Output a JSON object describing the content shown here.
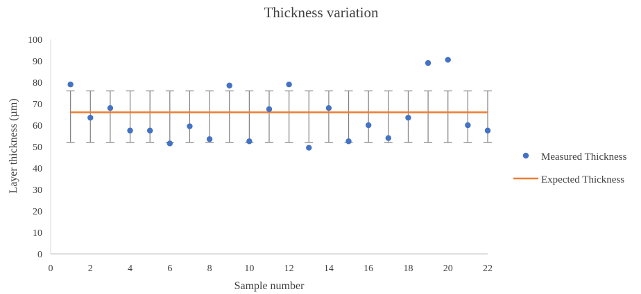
{
  "chart_data": {
    "type": "scatter",
    "title": "Thickness variation",
    "xlabel": "Sample number",
    "ylabel": "Layer thickness (µm)",
    "xlim": [
      0,
      22
    ],
    "ylim": [
      0,
      100
    ],
    "x_ticks": [
      0,
      2,
      4,
      6,
      8,
      10,
      12,
      14,
      16,
      18,
      20,
      22
    ],
    "y_ticks": [
      0,
      10,
      20,
      30,
      40,
      50,
      60,
      70,
      80,
      90,
      100
    ],
    "grid": false,
    "legend_position": "right",
    "series": [
      {
        "name": "Measured Thickness",
        "kind": "scatter",
        "color": "#4472C4",
        "x": [
          1,
          2,
          3,
          4,
          5,
          6,
          7,
          8,
          9,
          10,
          11,
          12,
          13,
          14,
          15,
          16,
          17,
          18,
          19,
          20,
          21,
          22
        ],
        "y": [
          79,
          63.5,
          68,
          57.5,
          57.5,
          51.5,
          59.5,
          53.5,
          78.5,
          52.5,
          67.5,
          79,
          49.5,
          68,
          52.5,
          60,
          54,
          63.5,
          89,
          90.5,
          60,
          57.5
        ]
      },
      {
        "name": "Expected Thickness",
        "kind": "line",
        "color": "#ED7D31",
        "x": [
          1,
          22
        ],
        "y": [
          66,
          66
        ],
        "error_bars": {
          "x": [
            1,
            2,
            3,
            4,
            5,
            6,
            7,
            8,
            9,
            10,
            11,
            12,
            13,
            14,
            15,
            16,
            17,
            18,
            19,
            20,
            21,
            22
          ],
          "low": 52,
          "high": 76,
          "color": "#808080"
        }
      }
    ]
  }
}
